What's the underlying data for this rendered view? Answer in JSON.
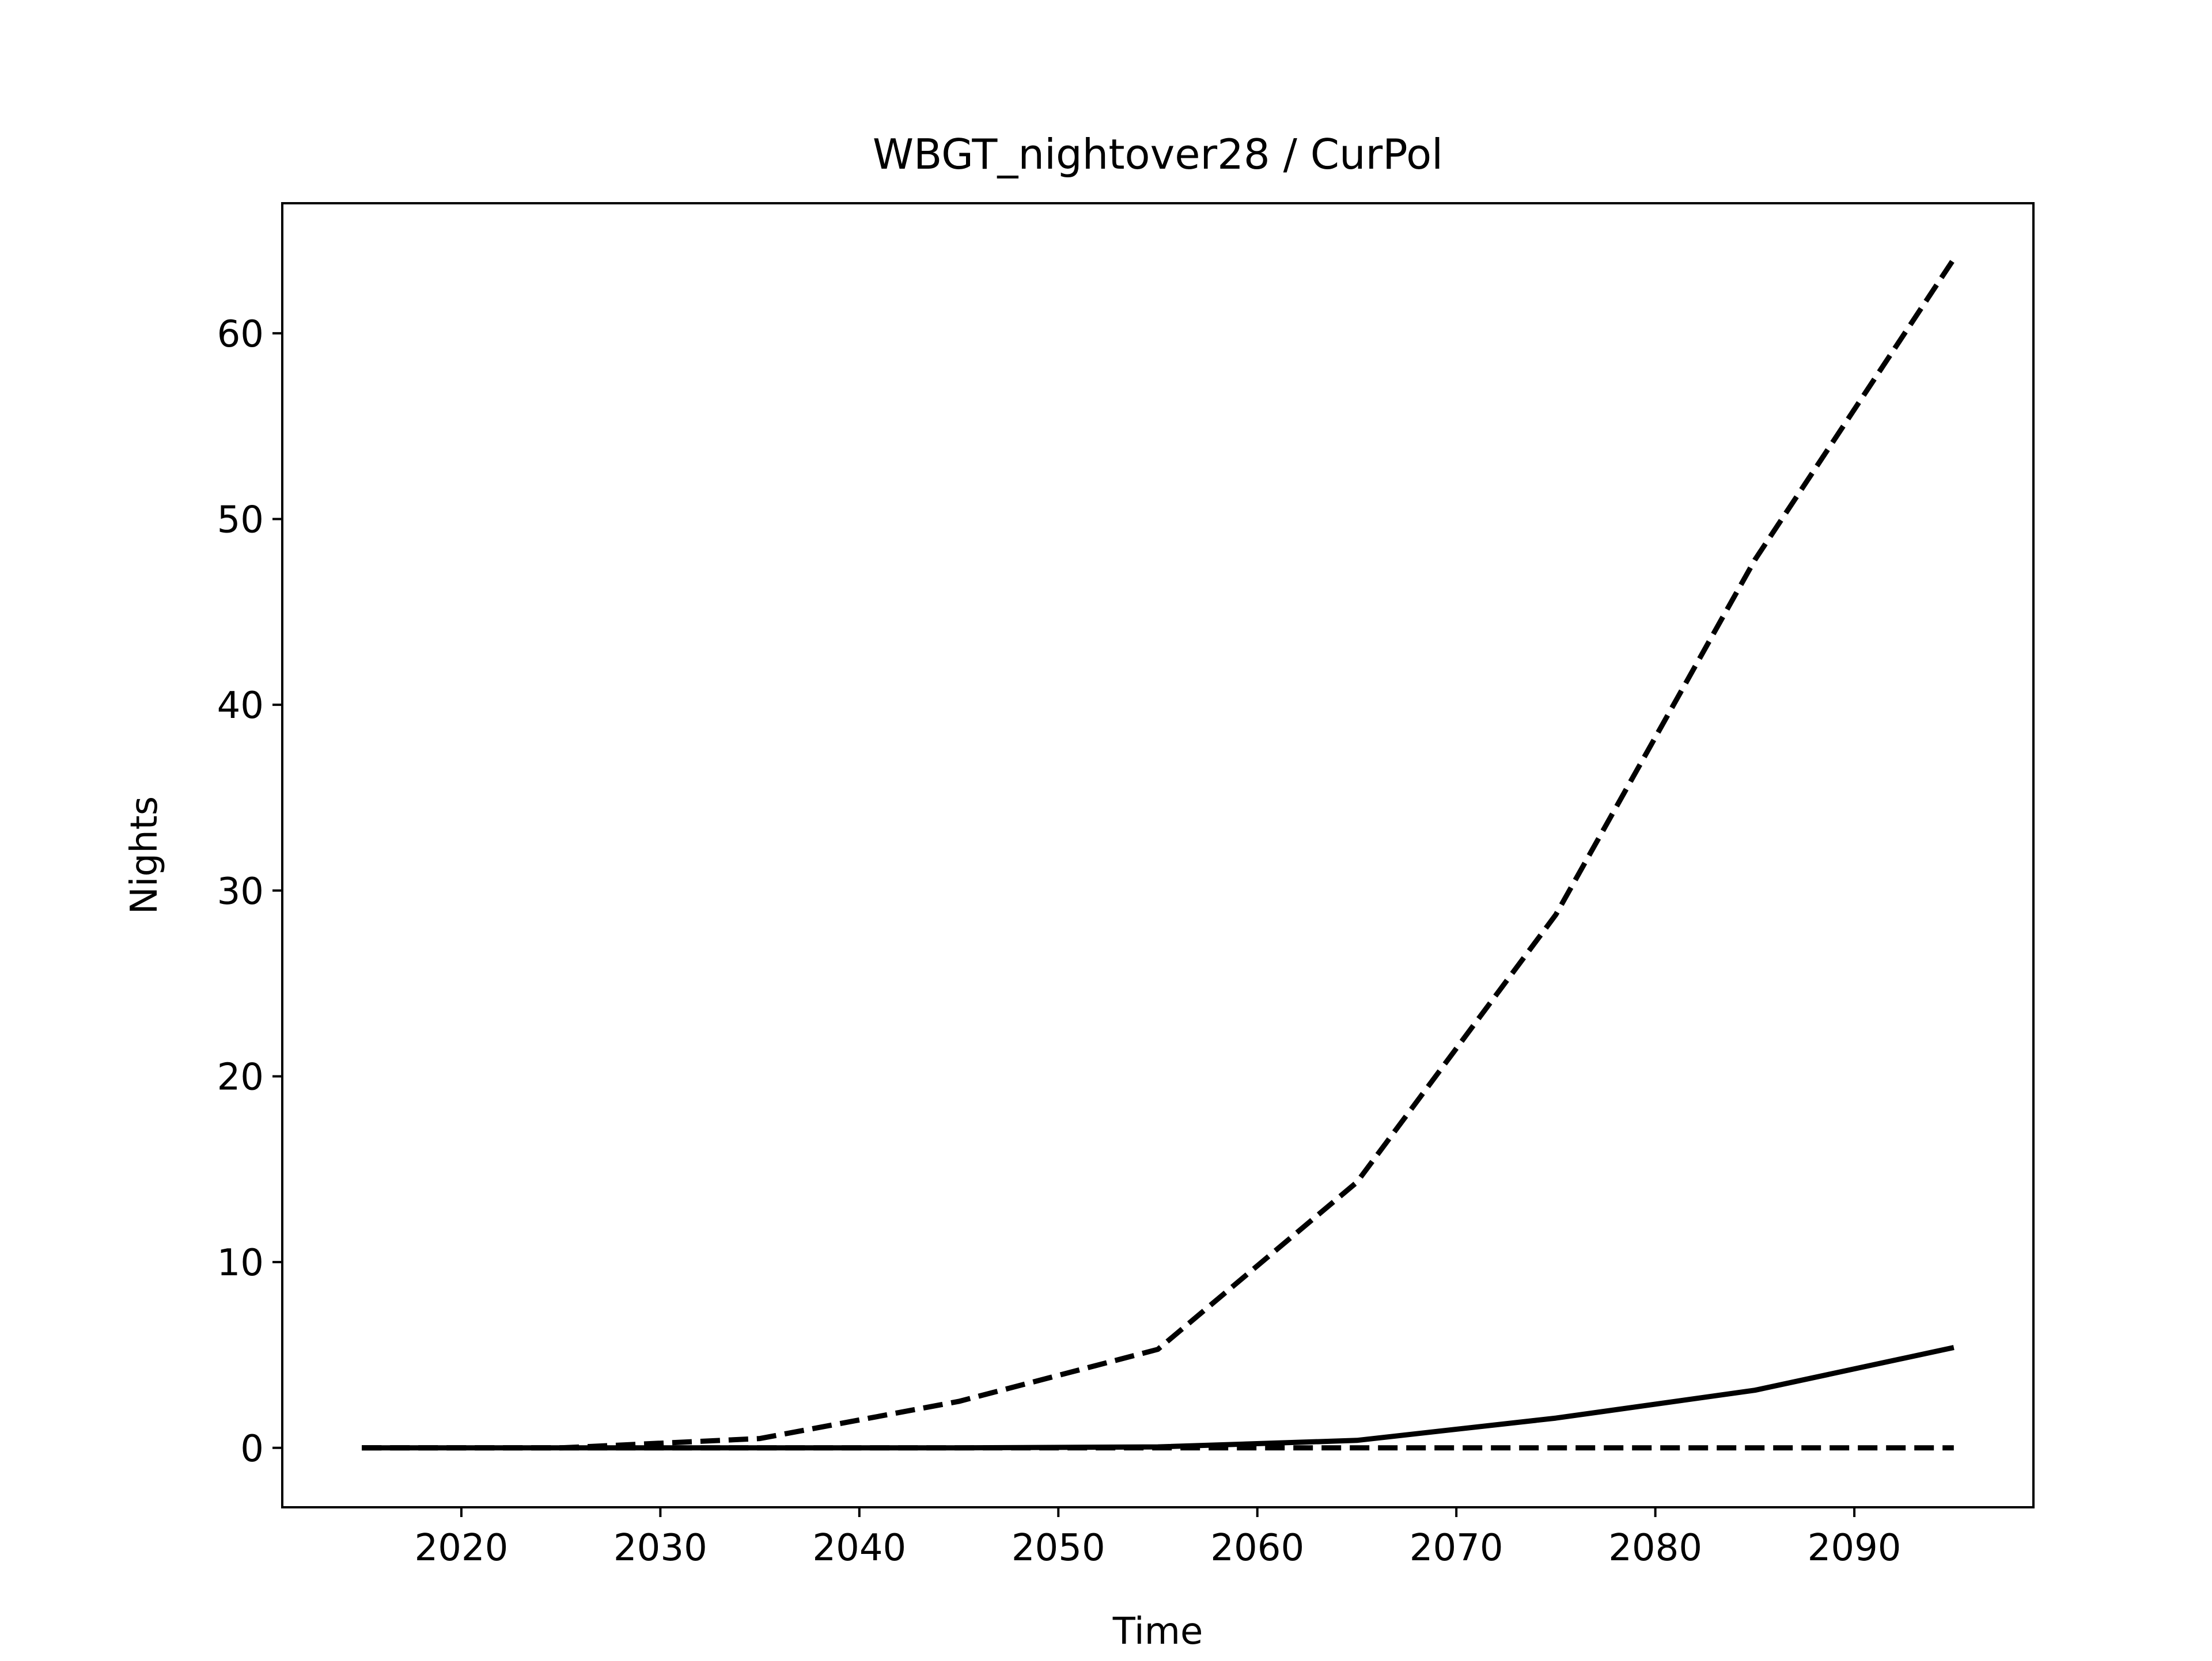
{
  "chart_data": {
    "type": "line",
    "title": "WBGT_nightover28 / CurPol",
    "xlabel": "Time",
    "ylabel": "Nights",
    "xlim": [
      2011,
      2099
    ],
    "ylim": [
      -3.2,
      67.0
    ],
    "xticks": [
      2020,
      2030,
      2040,
      2050,
      2060,
      2070,
      2080,
      2090
    ],
    "yticks": [
      0,
      10,
      20,
      30,
      40,
      50,
      60
    ],
    "grid": false,
    "legend": "none",
    "series": [
      {
        "style": "solid",
        "color": "#000000",
        "x": [
          2015,
          2025,
          2035,
          2045,
          2055,
          2065,
          2075,
          2085,
          2095
        ],
        "y": [
          0,
          0,
          0,
          0,
          0.05,
          0.4,
          1.6,
          3.1,
          5.4
        ]
      },
      {
        "style": "dashed",
        "color": "#000000",
        "x": [
          2015,
          2025,
          2035,
          2045,
          2055,
          2065,
          2075,
          2085,
          2095
        ],
        "y": [
          0,
          0,
          0.5,
          2.5,
          5.3,
          14.3,
          28.7,
          47.8,
          64.0
        ]
      },
      {
        "style": "dashed",
        "color": "#000000",
        "x": [
          2015,
          2025,
          2035,
          2045,
          2055,
          2065,
          2075,
          2085,
          2095
        ],
        "y": [
          0,
          0,
          0,
          0,
          0,
          0,
          0,
          0,
          0
        ]
      }
    ]
  }
}
